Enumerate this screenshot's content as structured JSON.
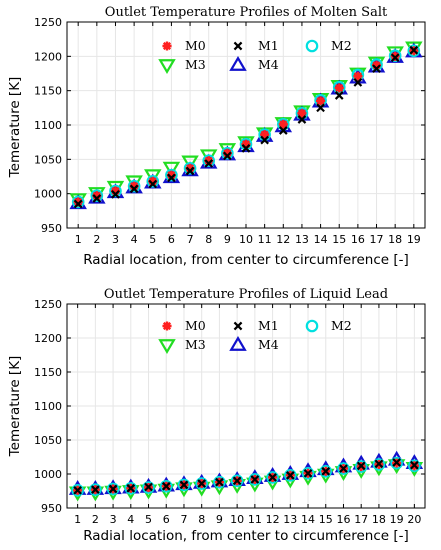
{
  "chart_data": [
    {
      "type": "scatter",
      "title": "Outlet Temperature Profiles of Molten Salt",
      "xlabel": "Radial location, from center to circumference [-]",
      "ylabel": "Temerature [K]",
      "x": [
        1,
        2,
        3,
        4,
        5,
        6,
        7,
        8,
        9,
        10,
        11,
        12,
        13,
        14,
        15,
        16,
        17,
        18,
        19
      ],
      "xticks": [
        "1",
        "2",
        "3",
        "4",
        "5",
        "6",
        "7",
        "8",
        "9",
        "10",
        "11",
        "12",
        "13",
        "14",
        "15",
        "16",
        "17",
        "18",
        "19"
      ],
      "ylim": [
        950,
        1250
      ],
      "yticks": [
        "950",
        "1000",
        "1050",
        "1100",
        "1150",
        "1200",
        "1250"
      ],
      "legend": "top",
      "series": [
        {
          "name": "M0",
          "marker": "asterisk",
          "color": "#ff2020",
          "values": [
            988,
            997,
            1004,
            1011,
            1018,
            1027,
            1037,
            1048,
            1059,
            1072,
            1086,
            1101,
            1117,
            1135,
            1154,
            1171,
            1187,
            1200,
            1208
          ]
        },
        {
          "name": "M1",
          "marker": "x",
          "color": "#000000",
          "values": [
            985,
            993,
            999,
            1007,
            1014,
            1023,
            1033,
            1044,
            1055,
            1066,
            1078,
            1092,
            1108,
            1125,
            1143,
            1162,
            1182,
            1198,
            1209
          ]
        },
        {
          "name": "M2",
          "marker": "circle",
          "color": "#00e0e0",
          "values": [
            988,
            997,
            1004,
            1011,
            1018,
            1027,
            1037,
            1048,
            1059,
            1072,
            1086,
            1101,
            1117,
            1136,
            1155,
            1173,
            1188,
            1201,
            1208
          ]
        },
        {
          "name": "M3",
          "marker": "triangle-down",
          "color": "#22dd22",
          "values": [
            992,
            1001,
            1010,
            1018,
            1027,
            1038,
            1047,
            1056,
            1065,
            1075,
            1088,
            1103,
            1120,
            1138,
            1157,
            1175,
            1191,
            1206,
            1213
          ]
        },
        {
          "name": "M4",
          "marker": "triangle-up",
          "color": "#1111cc",
          "values": [
            986,
            994,
            1002,
            1009,
            1016,
            1024,
            1034,
            1045,
            1057,
            1069,
            1084,
            1098,
            1115,
            1134,
            1153,
            1169,
            1185,
            1199,
            1207
          ]
        }
      ]
    },
    {
      "type": "scatter",
      "title": "Outlet Temperature Profiles of Liquid Lead",
      "xlabel": "Radial location, from center to circumference [-]",
      "ylabel": "Temerature [K]",
      "x": [
        1,
        2,
        3,
        4,
        5,
        6,
        7,
        8,
        9,
        10,
        11,
        12,
        13,
        14,
        15,
        16,
        17,
        18,
        19,
        20
      ],
      "xticks": [
        "1",
        "2",
        "3",
        "4",
        "5",
        "6",
        "7",
        "8",
        "9",
        "10",
        "11",
        "12",
        "13",
        "14",
        "15",
        "16",
        "17",
        "18",
        "19",
        "20"
      ],
      "ylim": [
        950,
        1250
      ],
      "yticks": [
        "950",
        "1000",
        "1050",
        "1100",
        "1150",
        "1200",
        "1250"
      ],
      "legend": "top",
      "series": [
        {
          "name": "M0",
          "marker": "asterisk",
          "color": "#ff2020",
          "values": [
            976,
            977,
            978,
            979,
            980,
            982,
            984,
            986,
            988,
            990,
            992,
            995,
            998,
            1001,
            1004,
            1008,
            1011,
            1014,
            1016,
            1012
          ]
        },
        {
          "name": "M1",
          "marker": "x",
          "color": "#000000",
          "values": [
            976,
            977,
            978,
            979,
            981,
            982,
            984,
            986,
            988,
            990,
            992,
            995,
            998,
            1001,
            1004,
            1008,
            1012,
            1015,
            1017,
            1013
          ]
        },
        {
          "name": "M2",
          "marker": "circle",
          "color": "#00e0e0",
          "values": [
            976,
            977,
            978,
            979,
            980,
            982,
            984,
            986,
            988,
            990,
            992,
            995,
            998,
            1001,
            1004,
            1008,
            1011,
            1014,
            1016,
            1012
          ]
        },
        {
          "name": "M3",
          "marker": "triangle-down",
          "color": "#22dd22",
          "values": [
            973,
            973,
            974,
            975,
            976,
            977,
            979,
            980,
            982,
            984,
            986,
            989,
            992,
            996,
            999,
            1003,
            1006,
            1010,
            1013,
            1009
          ]
        },
        {
          "name": "M4",
          "marker": "triangle-up",
          "color": "#1111cc",
          "values": [
            978,
            978,
            979,
            980,
            981,
            983,
            985,
            987,
            989,
            991,
            994,
            997,
            1000,
            1004,
            1007,
            1011,
            1015,
            1018,
            1021,
            1016
          ]
        }
      ]
    }
  ]
}
